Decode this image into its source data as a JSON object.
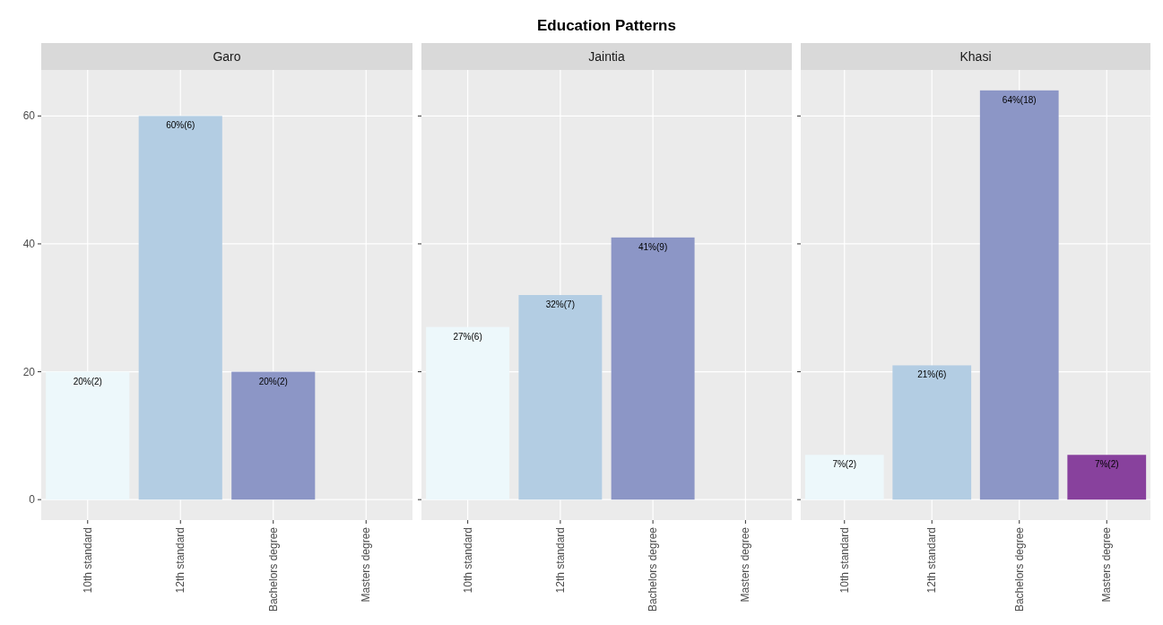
{
  "chart_data": [
    {
      "type": "bar",
      "subtitle": "Garo",
      "categories": [
        "10th standard",
        "12th standard",
        "Bachelors degree",
        "Masters degree"
      ],
      "values": [
        20,
        60,
        20,
        null
      ],
      "colors": [
        "#edf8fb",
        "#b3cde3",
        "#8c96c6",
        null
      ],
      "value_labels": [
        "20%(2)",
        "60%(6)",
        "20%(2)",
        null
      ],
      "ylim": [
        -3.2,
        67.2
      ],
      "yticks": [
        0,
        20,
        40,
        60
      ],
      "grid": true
    },
    {
      "type": "bar",
      "title": "Education Patterns",
      "subtitle": "Jaintia",
      "categories": [
        "10th standard",
        "12th standard",
        "Bachelors degree",
        "Masters degree"
      ],
      "values": [
        27,
        32,
        41,
        null
      ],
      "colors": [
        "#edf8fb",
        "#b3cde3",
        "#8c96c6",
        null
      ],
      "value_labels": [
        "27%(6)",
        "32%(7)",
        "41%(9)",
        null
      ],
      "ylim": [
        -3.2,
        67.2
      ],
      "yticks": [
        0,
        20,
        40,
        60
      ],
      "grid": true,
      "tick_labels": "x"
    },
    {
      "type": "bar",
      "subtitle": "Khasi",
      "categories": [
        "10th standard",
        "12th standard",
        "Bachelors degree",
        "Masters degree"
      ],
      "values": [
        7,
        21,
        64,
        7
      ],
      "colors": [
        "#edf8fb",
        "#b3cde3",
        "#8c96c6",
        "#88419d"
      ],
      "value_labels": [
        "7%(2)",
        "21%(6)",
        "64%(18)",
        "7%(2)"
      ],
      "ylim": [
        -3.2,
        67.2
      ],
      "yticks": [
        0,
        20,
        40,
        60
      ],
      "grid": true,
      "tick_labels": "x"
    }
  ]
}
